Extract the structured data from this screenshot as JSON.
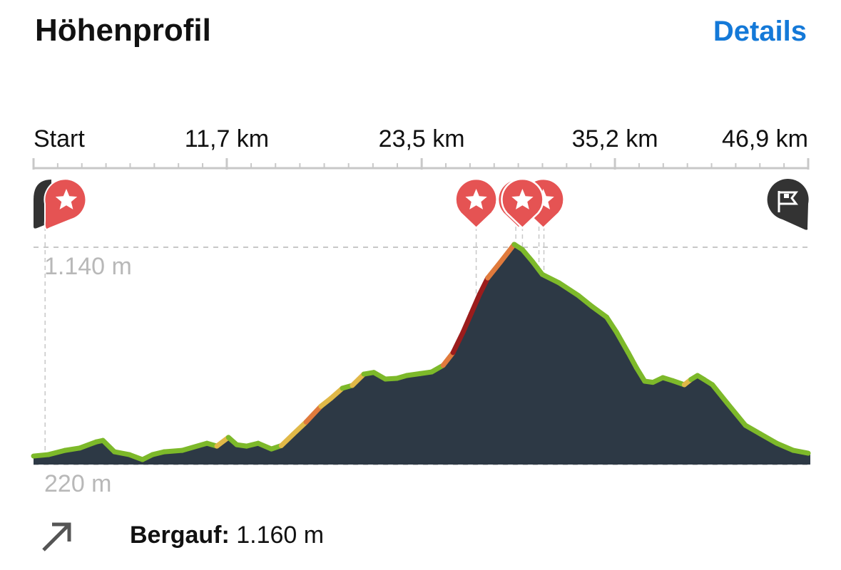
{
  "header": {
    "title": "Höhenprofil",
    "details_label": "Details"
  },
  "colors": {
    "fill": "#2d3945",
    "accent": "#1479d8",
    "marker": "#e55353",
    "pin_dark": "#333333",
    "grade": [
      "#7db92a",
      "#e0b847",
      "#e07a3c",
      "#c83a2e",
      "#9b1c1c"
    ]
  },
  "chart_data": {
    "type": "area",
    "title": "",
    "xlabel": "",
    "ylabel": "",
    "x_unit": "km",
    "y_unit": "m",
    "xlim": [
      0,
      46.9
    ],
    "ylim": [
      220,
      1140
    ],
    "x_ticks": [
      {
        "value": 0,
        "label": "Start"
      },
      {
        "value": 11.7,
        "label": "11,7 km"
      },
      {
        "value": 23.5,
        "label": "23,5 km"
      },
      {
        "value": 35.2,
        "label": "35,2 km"
      },
      {
        "value": 46.9,
        "label": "46,9 km"
      }
    ],
    "y_ticks": [
      {
        "value": 1140,
        "label": "1.140 m"
      },
      {
        "value": 220,
        "label": "220 m"
      }
    ],
    "grid": true,
    "points": [
      [
        0,
        256
      ],
      [
        0.9,
        262
      ],
      [
        1.9,
        280
      ],
      [
        2.8,
        290
      ],
      [
        3.8,
        316
      ],
      [
        4.2,
        322
      ],
      [
        4.9,
        274
      ],
      [
        5.8,
        262
      ],
      [
        6.6,
        241
      ],
      [
        7.2,
        262
      ],
      [
        7.9,
        274
      ],
      [
        9.0,
        280
      ],
      [
        10.5,
        310
      ],
      [
        11.1,
        298
      ],
      [
        11.8,
        335
      ],
      [
        12.3,
        304
      ],
      [
        12.9,
        298
      ],
      [
        13.6,
        310
      ],
      [
        14.4,
        286
      ],
      [
        15.0,
        300
      ],
      [
        15.7,
        347
      ],
      [
        16.5,
        400
      ],
      [
        17.4,
        467
      ],
      [
        18.0,
        500
      ],
      [
        18.7,
        543
      ],
      [
        19.3,
        555
      ],
      [
        20.0,
        603
      ],
      [
        20.6,
        610
      ],
      [
        21.3,
        582
      ],
      [
        22.0,
        585
      ],
      [
        22.6,
        597
      ],
      [
        23.4,
        605
      ],
      [
        24.1,
        612
      ],
      [
        24.8,
        640
      ],
      [
        25.4,
        694
      ],
      [
        26.0,
        780
      ],
      [
        26.5,
        860
      ],
      [
        27.0,
        940
      ],
      [
        27.5,
        1010
      ],
      [
        28.3,
        1080
      ],
      [
        29.1,
        1152
      ],
      [
        29.6,
        1130
      ],
      [
        30.2,
        1080
      ],
      [
        30.8,
        1025
      ],
      [
        31.8,
        990
      ],
      [
        33.0,
        935
      ],
      [
        33.8,
        890
      ],
      [
        34.7,
        844
      ],
      [
        35.3,
        780
      ],
      [
        36.0,
        694
      ],
      [
        36.5,
        630
      ],
      [
        37.0,
        573
      ],
      [
        37.5,
        568
      ],
      [
        38.1,
        588
      ],
      [
        38.7,
        575
      ],
      [
        39.4,
        558
      ],
      [
        39.8,
        580
      ],
      [
        40.2,
        597
      ],
      [
        40.6,
        580
      ],
      [
        41.1,
        558
      ],
      [
        42.0,
        480
      ],
      [
        43.1,
        386
      ],
      [
        44.0,
        350
      ],
      [
        45.0,
        310
      ],
      [
        46.0,
        280
      ],
      [
        46.9,
        268
      ]
    ],
    "markers": [
      {
        "km": 0,
        "type": "start"
      },
      {
        "km": 0.7,
        "type": "highlight"
      },
      {
        "km": 26.8,
        "type": "highlight"
      },
      {
        "km": 29.2,
        "type": "highlight"
      },
      {
        "km": 29.6,
        "type": "highlight"
      },
      {
        "km": 30.6,
        "type": "highlight"
      },
      {
        "km": 46.9,
        "type": "finish"
      }
    ],
    "marker_lines_km": [
      0.7,
      26.8,
      29.2,
      29.6,
      30.6,
      30.9
    ]
  },
  "footer": {
    "icon": "arrow-up-right-icon",
    "label": "Bergauf:",
    "value": "1.160 m"
  }
}
